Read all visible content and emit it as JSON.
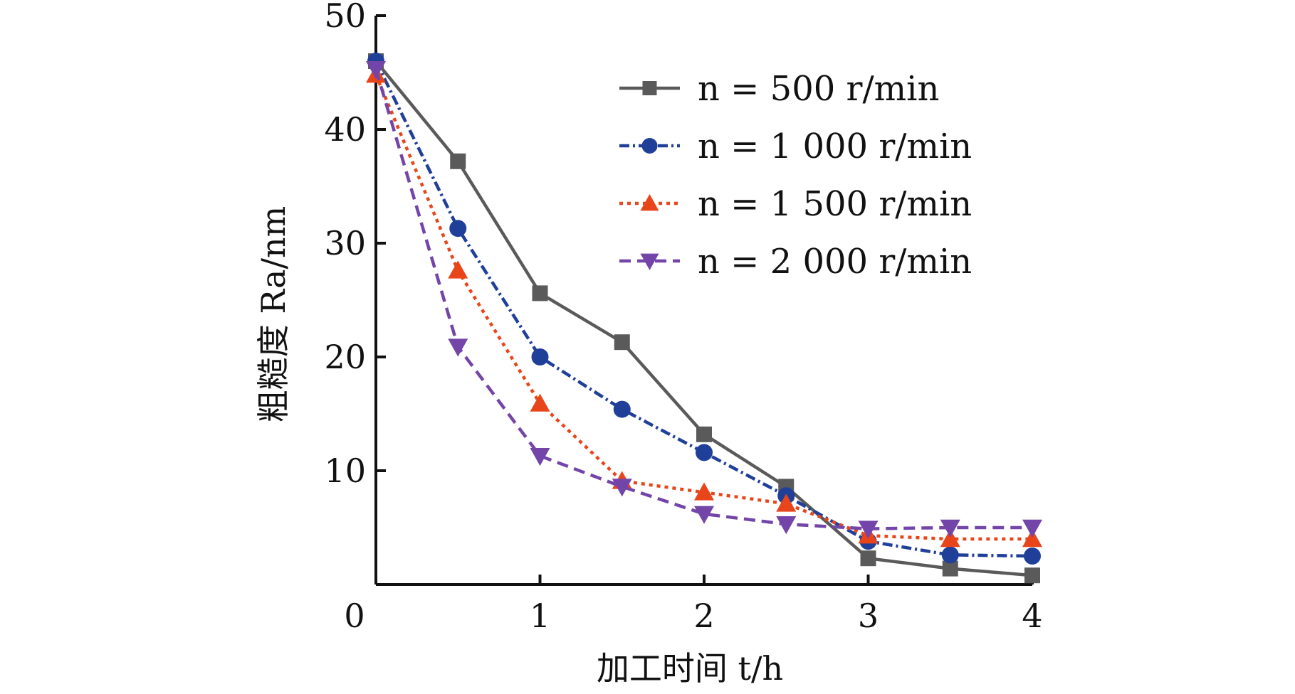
{
  "chart_data": {
    "type": "line",
    "xlabel": "加工时间 t/h",
    "ylabel": "粗糙度 Ra/nm",
    "xlim": [
      0,
      4
    ],
    "ylim": [
      0,
      50
    ],
    "x_ticks": [
      "0",
      "1",
      "2",
      "3",
      "4"
    ],
    "y_ticks": [
      "10",
      "20",
      "30",
      "40",
      "50"
    ],
    "grid": false,
    "legend_position": "top-right",
    "x": [
      0,
      0.5,
      1,
      1.5,
      2,
      2.5,
      3,
      3.5,
      4
    ],
    "series": [
      {
        "name": "n = 500 r/min",
        "values": [
          46,
          37.2,
          25.6,
          21.3,
          13.2,
          8.6,
          2.3,
          1.4,
          0.8
        ],
        "color": "#5a5a5a",
        "marker": "square",
        "line": "solid"
      },
      {
        "name": "n = 1 000 r/min",
        "values": [
          46,
          31.3,
          20,
          15.4,
          11.6,
          7.8,
          3.8,
          2.6,
          2.5
        ],
        "color": "#1f3f99",
        "marker": "circle",
        "line": "dashdot"
      },
      {
        "name": "n = 1 500 r/min",
        "values": [
          44.8,
          27.6,
          15.9,
          9.1,
          8.1,
          7.1,
          4.3,
          4.0,
          4.0
        ],
        "color": "#e8461a",
        "marker": "triangle-up",
        "line": "dotted"
      },
      {
        "name": "n = 2 000 r/min",
        "values": [
          45.3,
          20.9,
          11.3,
          8.6,
          6.2,
          5.3,
          4.9,
          5.0,
          5.0
        ],
        "color": "#7445a8",
        "marker": "triangle-down",
        "line": "dashed"
      }
    ]
  }
}
